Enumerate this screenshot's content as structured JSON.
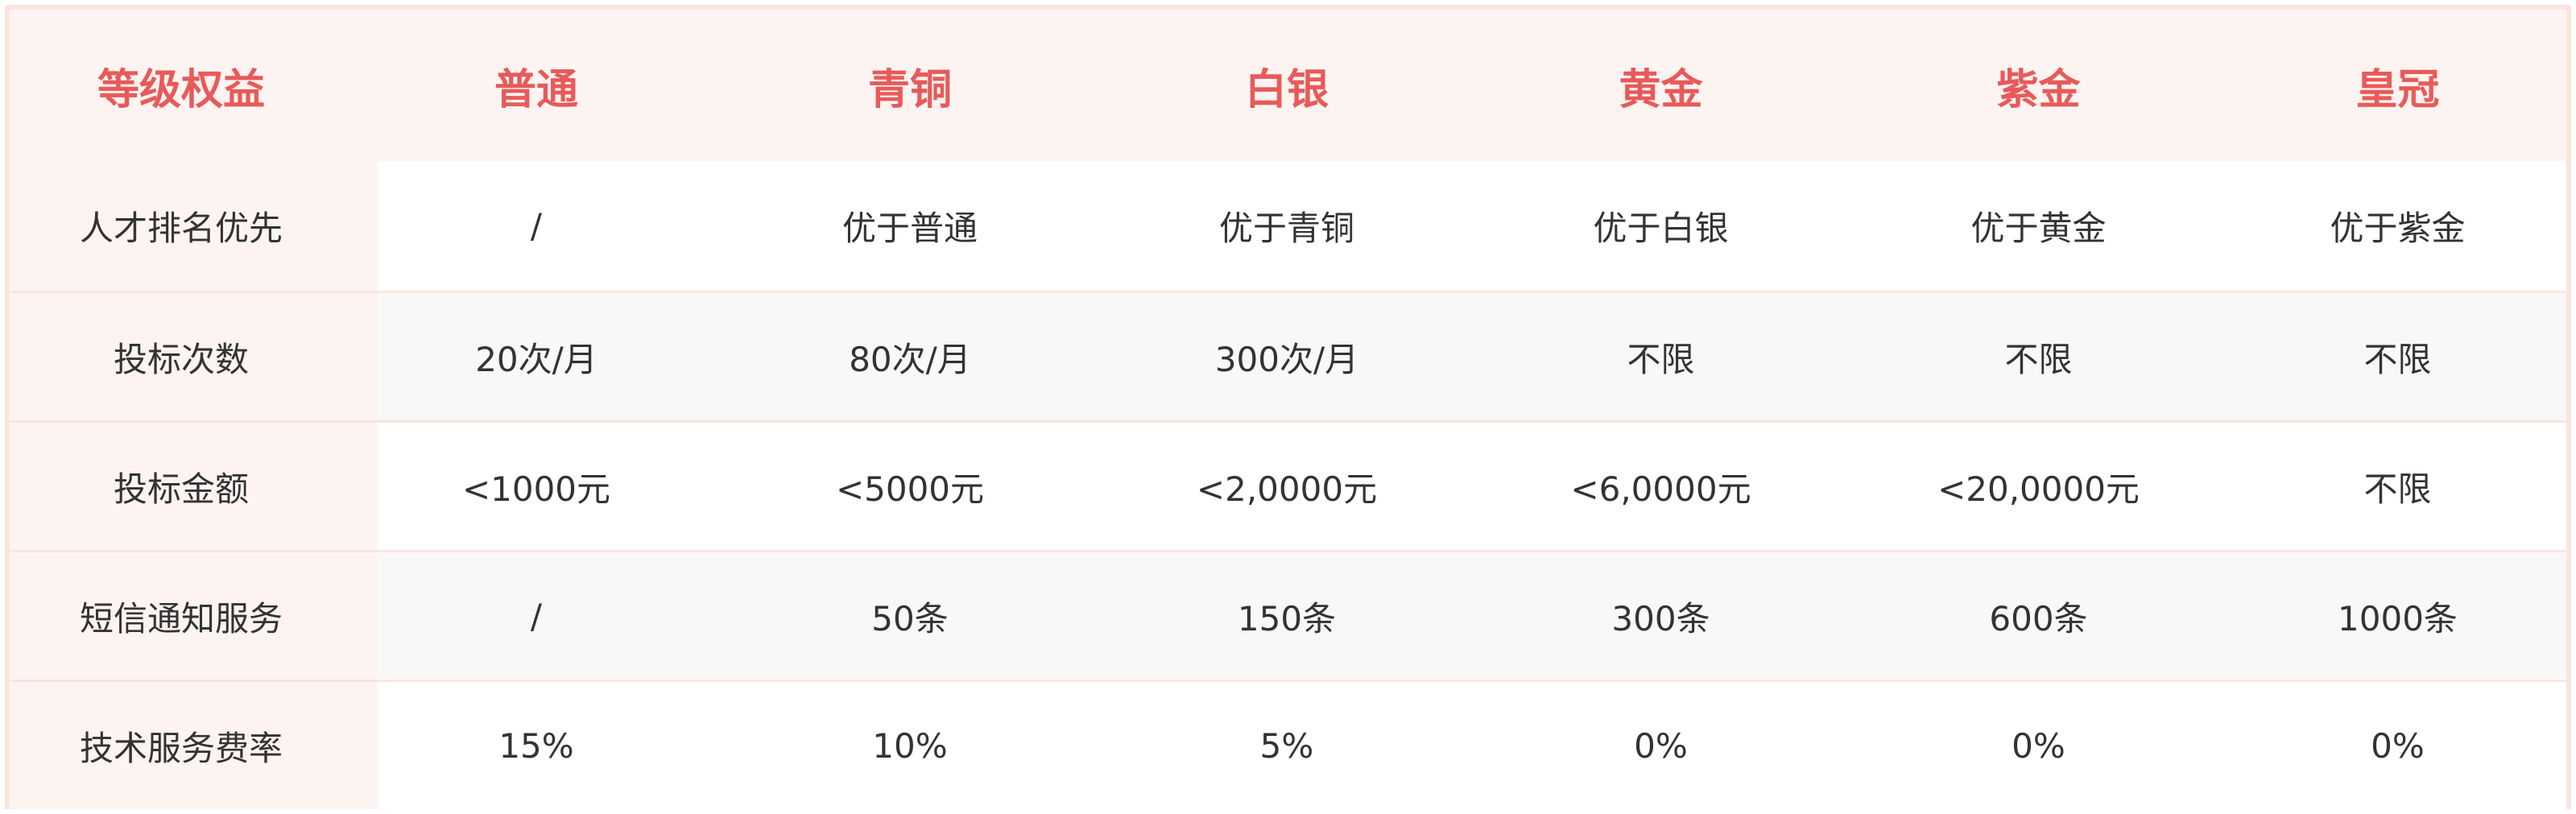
{
  "header": [
    "等级权益",
    "普通",
    "青铜",
    "白银",
    "黄金",
    "紫金",
    "皇冠"
  ],
  "rows": [
    {
      "label": "人才排名优先",
      "values": [
        "/",
        "优于普通",
        "优于青铜",
        "优于白银",
        "优于黄金",
        "优于紫金"
      ]
    },
    {
      "label": "投标次数",
      "values": [
        "20次/月",
        "80次/月",
        "300次/月",
        "不限",
        "不限",
        "不限"
      ]
    },
    {
      "label": "投标金额",
      "values": [
        "<1000元",
        "<5000元",
        "<2,0000元",
        "<6,0000元",
        "<20,0000元",
        "不限"
      ]
    },
    {
      "label": "短信通知服务",
      "values": [
        "/",
        "50条",
        "150条",
        "300条",
        "600条",
        "1000条"
      ]
    },
    {
      "label": "技术服务费率",
      "values": [
        "15%",
        "10%",
        "5%",
        "0%",
        "0%",
        "0%"
      ]
    }
  ],
  "colors": {
    "accent": "#e85a5a",
    "header_bg": "#fdf4f1",
    "border": "#f8e6df",
    "alt_row": "#f8f8f8",
    "text": "#333333"
  }
}
